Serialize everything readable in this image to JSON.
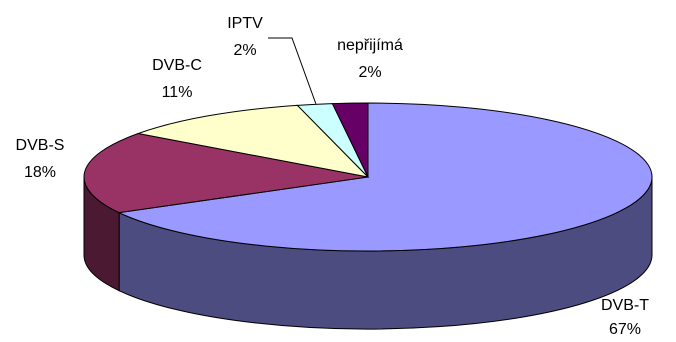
{
  "chart_data": {
    "type": "pie",
    "title": "",
    "style": "3d",
    "slices": [
      {
        "label": "DVB-T",
        "pct_label": "67%",
        "value": 67,
        "color": "#9999FF",
        "side_color": "#4C4C80"
      },
      {
        "label": "DVB-S",
        "pct_label": "18%",
        "value": 18,
        "color": "#993366",
        "side_color": "#4C1933"
      },
      {
        "label": "DVB-C",
        "pct_label": "11%",
        "value": 11,
        "color": "#FFFFCC",
        "side_color": "#808066"
      },
      {
        "label": "IPTV",
        "pct_label": "2%",
        "value": 2,
        "color": "#CCFFFF",
        "side_color": "#668080"
      },
      {
        "label": "nepřijímá",
        "pct_label": "2%",
        "value": 2,
        "color": "#660066",
        "side_color": "#330033"
      }
    ]
  }
}
